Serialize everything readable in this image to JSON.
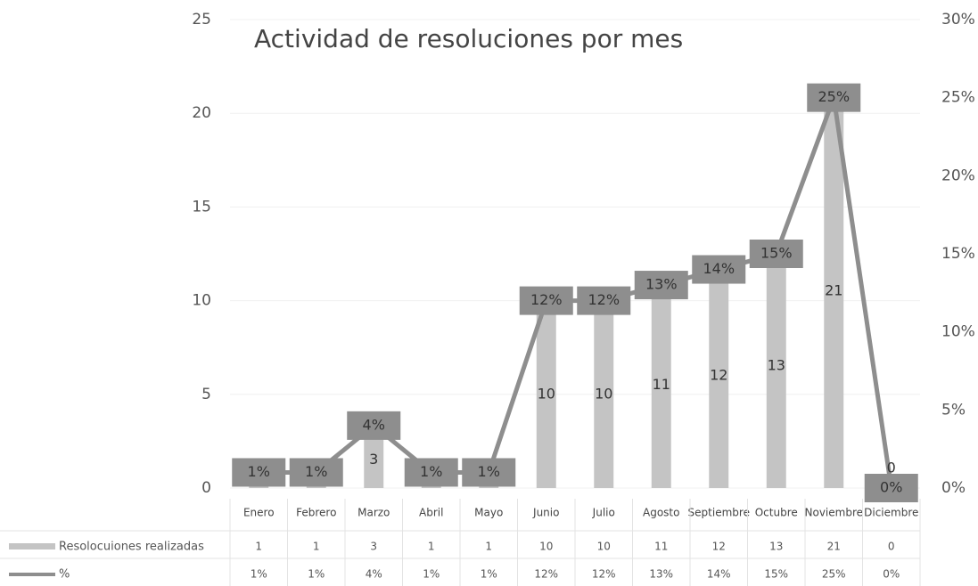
{
  "chart_data": {
    "type": "bar-line",
    "title": "Actividad de resoluciones por mes",
    "categories": [
      "Enero",
      "Febrero",
      "Marzo",
      "Abril",
      "Mayo",
      "Junio",
      "Julio",
      "Agosto",
      "Septiembre",
      "Octubre",
      "Noviembre",
      "Diciembre"
    ],
    "series": [
      {
        "name": "Resolocuiones realizadas",
        "type": "bar",
        "color": "#c4c4c4",
        "values": [
          1,
          1,
          3,
          1,
          1,
          10,
          10,
          11,
          12,
          13,
          21,
          0
        ]
      },
      {
        "name": "%",
        "type": "line",
        "axis": "y2",
        "color": "#8e8e8e",
        "values": [
          1,
          1,
          4,
          1,
          1,
          12,
          12,
          13,
          14,
          15,
          25,
          0
        ],
        "value_labels": [
          "1%",
          "1%",
          "4%",
          "1%",
          "1%",
          "12%",
          "12%",
          "13%",
          "14%",
          "15%",
          "25%",
          "0%"
        ]
      }
    ],
    "ylim": [
      0,
      25
    ],
    "yticks": [
      0,
      5,
      10,
      15,
      20,
      25
    ],
    "y2lim": [
      0,
      30
    ],
    "y2ticks": [
      {
        "value": 0,
        "label": "0%"
      },
      {
        "value": 5,
        "label": "5%"
      },
      {
        "value": 10,
        "label": "10%"
      },
      {
        "value": 15,
        "label": "15%"
      },
      {
        "value": 20,
        "label": "20%"
      },
      {
        "value": 25,
        "label": "25%"
      },
      {
        "value": 30,
        "label": "30%"
      }
    ],
    "grid": true,
    "data_table": true
  }
}
